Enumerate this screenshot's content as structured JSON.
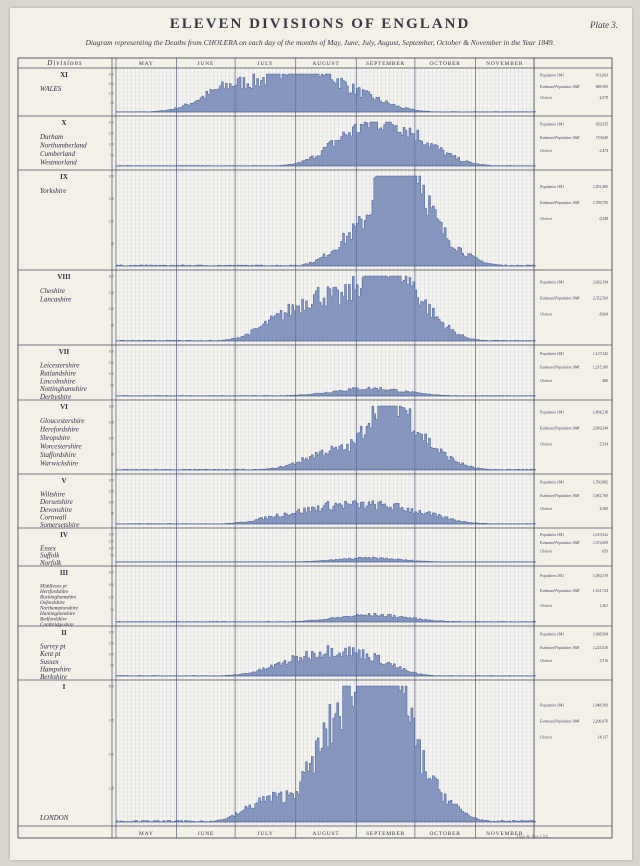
{
  "title": "ELEVEN DIVISIONS OF ENGLAND",
  "subtitle": "Diagram representing the Deaths from CHOLERA on each day of the months of May, June, July, August, September, October & November in the Year 1849.",
  "plate": "Plate 3.",
  "engraver": "Day & Son Lith",
  "header_label": "Divisions",
  "chart_data": {
    "type": "area",
    "x_unit": "day of year 1849",
    "months": [
      "MAY",
      "JUNE",
      "JULY",
      "AUGUST",
      "SEPTEMBER",
      "OCTOBER",
      "NOVEMBER"
    ],
    "panels": [
      {
        "roman": "XI",
        "counties": [
          "WALES"
        ],
        "stats": [
          "Population 1841",
          "Estimated Population 1848",
          "Cholera"
        ],
        "stat_values": [
          "911,603",
          "988,590",
          "4,579"
        ],
        "ylim": [
          0,
          200
        ],
        "peaks": [
          [
            176,
            0.45,
            14
          ],
          [
            196,
            0.55,
            16
          ],
          [
            214,
            0.88,
            10
          ],
          [
            226,
            0.6,
            12
          ],
          [
            246,
            0.38,
            14
          ]
        ]
      },
      {
        "roman": "X",
        "counties": [
          "Durham",
          "Northumberland",
          "Cumberland",
          "Westmorland"
        ],
        "stats": [
          "Population 1841",
          "Estimated Population 1848",
          "Cholera"
        ],
        "stat_values": [
          "659,355",
          "719,640",
          "2,474"
        ],
        "ylim": [
          0,
          200
        ],
        "peaks": [
          [
            238,
            0.55,
            12
          ],
          [
            258,
            0.75,
            12
          ],
          [
            276,
            0.45,
            14
          ]
        ]
      },
      {
        "roman": "IX",
        "counties": [
          "Yorkshire"
        ],
        "stats": [
          "Population 1841",
          "Estimated Population 1848",
          "Cholera"
        ],
        "stat_values": [
          "1,591,480",
          "1,789,750",
          "6,548"
        ],
        "ylim": [
          0,
          300
        ],
        "peaks": [
          [
            246,
            0.4,
            12
          ],
          [
            262,
            0.95,
            7
          ],
          [
            270,
            0.75,
            8
          ],
          [
            280,
            0.4,
            14
          ]
        ]
      },
      {
        "roman": "VIII",
        "counties": [
          "Cheshire",
          "Lancashire"
        ],
        "stats": [
          "Population 1841",
          "Estimated Population 1848",
          "Cholera"
        ],
        "stat_values": [
          "2,062,194",
          "2,352,560",
          "8,664"
        ],
        "ylim": [
          0,
          300
        ],
        "peaks": [
          [
            206,
            0.35,
            12
          ],
          [
            226,
            0.62,
            10
          ],
          [
            248,
            0.72,
            9
          ],
          [
            262,
            0.9,
            9
          ],
          [
            276,
            0.45,
            12
          ]
        ]
      },
      {
        "roman": "VII",
        "counties": [
          "Leicestershire",
          "Rutlandshire",
          "Lincolnshire",
          "Nottinghamshire",
          "Derbyshire"
        ],
        "stats": [
          "Population 1841",
          "Estimated Population 1848",
          "Cholera"
        ],
        "stat_values": [
          "1,127,342",
          "1,215,180",
          "486"
        ],
        "ylim": [
          0,
          200
        ],
        "peaks": [
          [
            250,
            0.18,
            18
          ]
        ]
      },
      {
        "roman": "VI",
        "counties": [
          "Gloucestershire",
          "Herefordshire",
          "Shropshire",
          "Worcestershire",
          "Staffordshire",
          "Warwickshire"
        ],
        "stats": [
          "Population 1841",
          "Estimated Population 1848",
          "Cholera"
        ],
        "stat_values": [
          "1,894,218",
          "2,069,244",
          "5,534"
        ],
        "ylim": [
          0,
          300
        ],
        "peaks": [
          [
            232,
            0.32,
            14
          ],
          [
            256,
            0.78,
            8
          ],
          [
            266,
            0.6,
            9
          ],
          [
            280,
            0.3,
            12
          ]
        ]
      },
      {
        "roman": "V",
        "counties": [
          "Wiltshire",
          "Dorsetshire",
          "Devonshire",
          "Cornwall",
          "Somersetshire"
        ],
        "stats": [
          "Population 1841",
          "Estimated Population 1848",
          "Cholera"
        ],
        "stat_values": [
          "1,760,882",
          "1,841,760",
          "4,380"
        ],
        "ylim": [
          0,
          300
        ],
        "peaks": [
          [
            210,
            0.22,
            14
          ],
          [
            234,
            0.35,
            12
          ],
          [
            256,
            0.3,
            12
          ],
          [
            276,
            0.22,
            14
          ]
        ]
      },
      {
        "roman": "IV",
        "counties": [
          "Essex",
          "Suffolk",
          "Norfolk"
        ],
        "stats": [
          "Population 1841",
          "Estimated Population 1848",
          "Cholera"
        ],
        "stat_values": [
          "1,019,522",
          "1,072,609",
          "659"
        ],
        "ylim": [
          0,
          200
        ],
        "peaks": [
          [
            250,
            0.15,
            16
          ]
        ]
      },
      {
        "roman": "III",
        "counties": [
          "Middlesex pt",
          "Hertfordshire",
          "Buckinghamshire",
          "Oxfordshire",
          "Northamptonshire",
          "Huntingdonshire",
          "Bedfordshire",
          "Cambridgeshire"
        ],
        "stats": [
          "Population 1841",
          "Estimated Population 1848",
          "Cholera"
        ],
        "stat_values": [
          "1,092,519",
          "1,161,724",
          "1,561"
        ],
        "ylim": [
          0,
          200
        ],
        "peaks": [
          [
            252,
            0.15,
            18
          ]
        ]
      },
      {
        "roman": "II",
        "counties": [
          "Surrey pt",
          "Kent pt",
          "Sussex",
          "Hampshire",
          "Berkshire"
        ],
        "stats": [
          "Population 1841",
          "Estimated Population 1848",
          "Cholera"
        ],
        "stat_values": [
          "1,098,584",
          "1,225,520",
          "3,316"
        ],
        "ylim": [
          0,
          200
        ],
        "peaks": [
          [
            212,
            0.3,
            14
          ],
          [
            232,
            0.42,
            12
          ],
          [
            252,
            0.35,
            12
          ]
        ]
      },
      {
        "roman": "I",
        "counties": [
          "LONDON"
        ],
        "stats": [
          "Population 1841",
          "Estimated Population 1848",
          "Cholera"
        ],
        "stat_values": [
          "1,948,369",
          "2,206,076",
          "14,137"
        ],
        "ylim": [
          0,
          500
        ],
        "peaks": [
          [
            200,
            0.18,
            12
          ],
          [
            226,
            0.45,
            9
          ],
          [
            240,
            0.65,
            8
          ],
          [
            250,
            0.78,
            7
          ],
          [
            258,
            0.95,
            6
          ],
          [
            266,
            0.62,
            8
          ],
          [
            280,
            0.25,
            12
          ]
        ]
      }
    ]
  }
}
